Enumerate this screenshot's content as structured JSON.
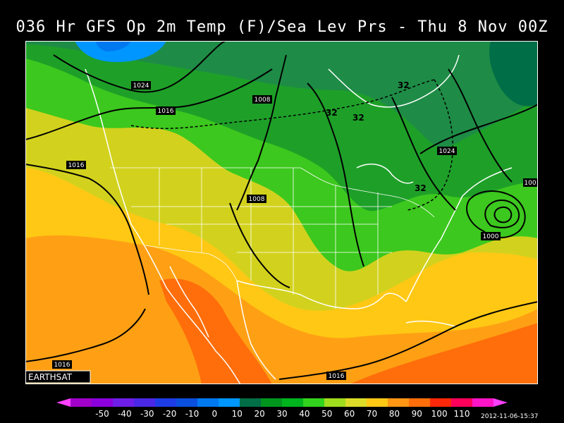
{
  "title": "036 Hr GFS Op 2m Temp (F)/Sea Lev Prs - Thu 8 Nov 00Z",
  "watermark": "EARTHSAT",
  "timestamp": "2012-11-06-15:37",
  "isobar_labels": [
    "1024",
    "1016",
    "1008",
    "1016",
    "1008",
    "1024",
    "1000",
    "1016",
    "1016",
    "100"
  ],
  "freezing_labels": [
    "32",
    "32",
    "32",
    "32"
  ],
  "legend": {
    "tick_labels": [
      "-50",
      "-40",
      "-30",
      "-20",
      "-10",
      "0",
      "10",
      "20",
      "30",
      "40",
      "50",
      "60",
      "70",
      "80",
      "90",
      "100",
      "110"
    ],
    "colors": [
      "#a000c8",
      "#8c00dc",
      "#6e1ee6",
      "#4b28e6",
      "#1e3ce6",
      "#0a50dc",
      "#0078f0",
      "#0096ff",
      "#006e46",
      "#00961e",
      "#00b41e",
      "#32d21e",
      "#a0dc1e",
      "#dcdc28",
      "#ffc814",
      "#ff9614",
      "#ff6e0a",
      "#ff280a",
      "#ff005a",
      "#ff14c8"
    ]
  },
  "colors": {
    "background": "#000000",
    "text": "#ffffff",
    "coastline": "#ffffff",
    "isobar": "#000000",
    "temp_20_30": "#1e8c46",
    "temp_30_40": "#1ea028",
    "temp_40_50": "#3cc81e",
    "temp_50_60": "#d2d21e",
    "temp_60_70": "#ffc814",
    "temp_70_80": "#ffa014",
    "temp_80_90": "#ff6e0a",
    "ocean_cold": "#006e46"
  }
}
